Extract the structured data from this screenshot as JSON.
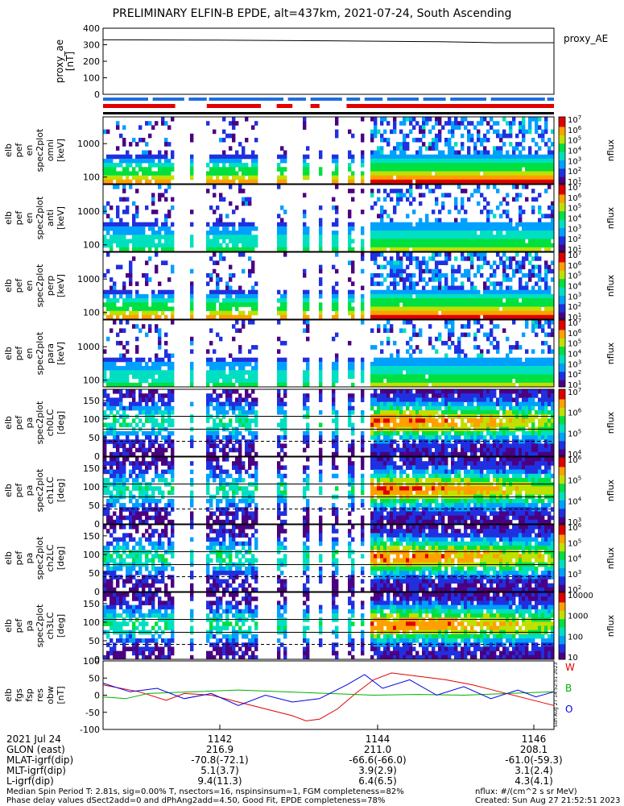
{
  "title": "PRELIMINARY ELFIN-B EPDE, alt=437km, 2021-07-24, South Ascending",
  "chart_data": [
    {
      "type": "line",
      "panel": "proxy_ae",
      "ylabel": [
        "proxy_ae",
        "[nT]"
      ],
      "legend": "proxy_AE",
      "ylim": [
        0,
        400
      ],
      "yticks": [
        0,
        100,
        200,
        300,
        400
      ],
      "x": [
        0,
        0.25,
        0.5,
        0.75,
        0.87,
        1.0
      ],
      "values": [
        330,
        328,
        324,
        318,
        312,
        312
      ]
    },
    {
      "type": "heatmap",
      "panel": "en spectrum 1",
      "ylabel": [
        "elb",
        "pef",
        "en",
        "spec2plot",
        "omni",
        "[keV]"
      ],
      "yscale": "log",
      "yticks": [
        100,
        1000
      ],
      "colorbar": {
        "label": "nflux",
        "ticks": [
          "10^1",
          "10^2",
          "10^3",
          "10^4",
          "10^5",
          "10^6",
          "10^7"
        ]
      }
    },
    {
      "type": "heatmap",
      "panel": "en spectrum 2",
      "ylabel": [
        "elb",
        "pef",
        "en",
        "spec2plot",
        "anti",
        "[keV]"
      ],
      "yscale": "log",
      "yticks": [
        100,
        1000
      ],
      "colorbar": {
        "label": "nflux",
        "ticks": [
          "10^1",
          "10^2",
          "10^3",
          "10^4",
          "10^5",
          "10^6",
          "10^7"
        ]
      }
    },
    {
      "type": "heatmap",
      "panel": "en spectrum 3",
      "ylabel": [
        "elb",
        "pef",
        "en",
        "spec2plot",
        "perp",
        "[keV]"
      ],
      "yscale": "log",
      "yticks": [
        100,
        1000
      ],
      "colorbar": {
        "label": "nflux",
        "ticks": [
          "10^1",
          "10^2",
          "10^3",
          "10^4",
          "10^5",
          "10^6",
          "10^7"
        ]
      }
    },
    {
      "type": "heatmap",
      "panel": "en spectrum 4",
      "ylabel": [
        "elb",
        "pef",
        "en",
        "spec2plot",
        "para",
        "[keV]"
      ],
      "yscale": "log",
      "yticks": [
        100,
        1000
      ],
      "colorbar": {
        "label": "nflux",
        "ticks": [
          "10^1",
          "10^2",
          "10^3",
          "10^4",
          "10^5",
          "10^6",
          "10^7"
        ]
      }
    },
    {
      "type": "heatmap",
      "panel": "pa ch0",
      "ylabel": [
        "elb",
        "pef",
        "pa",
        "spec2plot",
        "ch0LC",
        "[deg]"
      ],
      "yticks": [
        0,
        50,
        100,
        150
      ],
      "ylim": [
        0,
        180
      ],
      "colorbar": {
        "label": "nflux",
        "ticks": [
          "10^4",
          "10^5",
          "10^6",
          "10^7"
        ]
      }
    },
    {
      "type": "heatmap",
      "panel": "pa ch1",
      "ylabel": [
        "elb",
        "pef",
        "pa",
        "spec2plot",
        "ch1LC",
        "[deg]"
      ],
      "yticks": [
        0,
        50,
        100,
        150
      ],
      "ylim": [
        0,
        180
      ],
      "colorbar": {
        "label": "nflux",
        "ticks": [
          "10^3",
          "10^4",
          "10^5",
          "10^6"
        ]
      }
    },
    {
      "type": "heatmap",
      "panel": "pa ch2",
      "ylabel": [
        "elb",
        "pef",
        "pa",
        "spec2plot",
        "ch2LC",
        "[deg]"
      ],
      "yticks": [
        0,
        50,
        100,
        150
      ],
      "ylim": [
        0,
        180
      ],
      "colorbar": {
        "label": "nflux",
        "ticks": [
          "10^2",
          "10^3",
          "10^4",
          "10^5",
          "10^6"
        ]
      }
    },
    {
      "type": "heatmap",
      "panel": "pa ch3",
      "ylabel": [
        "elb",
        "pef",
        "pa",
        "spec2plot",
        "ch3LC",
        "[deg]"
      ],
      "yticks": [
        0,
        50,
        100,
        150
      ],
      "ylim": [
        0,
        180
      ],
      "colorbar": {
        "label": "nflux",
        "ticks": [
          "10",
          "100",
          "1000",
          "10000"
        ]
      }
    },
    {
      "type": "line",
      "panel": "fgs",
      "ylabel": [
        "elb",
        "fgs",
        "fsp",
        "res",
        "obw",
        "[nT]"
      ],
      "ylim": [
        -100,
        100
      ],
      "yticks": [
        -100,
        -50,
        0,
        50,
        100
      ],
      "legend": [
        "W",
        "B",
        "O"
      ],
      "series": [
        {
          "name": "W",
          "color": "#e00000",
          "x": [
            0.0,
            0.08,
            0.14,
            0.18,
            0.24,
            0.3,
            0.36,
            0.42,
            0.45,
            0.48,
            0.52,
            0.56,
            0.6,
            0.64,
            0.7,
            0.76,
            0.82,
            0.88,
            0.94,
            1.0
          ],
          "values": [
            30,
            10,
            -15,
            5,
            0,
            -20,
            -40,
            -60,
            -75,
            -70,
            -40,
            5,
            45,
            65,
            55,
            45,
            30,
            10,
            -10,
            -30
          ]
        },
        {
          "name": "B",
          "color": "#00b000",
          "x": [
            0.0,
            0.05,
            0.1,
            0.2,
            0.3,
            0.4,
            0.5,
            0.6,
            0.7,
            0.8,
            0.9,
            1.0
          ],
          "values": [
            -5,
            -10,
            5,
            10,
            15,
            10,
            5,
            0,
            2,
            0,
            5,
            10
          ]
        },
        {
          "name": "O",
          "color": "#0000e0",
          "x": [
            0.0,
            0.06,
            0.12,
            0.18,
            0.24,
            0.3,
            0.36,
            0.42,
            0.48,
            0.54,
            0.58,
            0.62,
            0.68,
            0.74,
            0.8,
            0.86,
            0.92,
            0.96,
            1.0
          ],
          "values": [
            35,
            10,
            20,
            -10,
            5,
            -30,
            0,
            -20,
            -10,
            30,
            60,
            20,
            45,
            0,
            25,
            -10,
            15,
            -5,
            10
          ]
        }
      ]
    }
  ],
  "xaxis": {
    "rows": [
      {
        "label": "2021 Jul 24",
        "values": [
          "1142",
          "1144",
          "1146"
        ]
      },
      {
        "label": "GLON (east)",
        "values": [
          "216.9",
          "211.0",
          "208.1"
        ]
      },
      {
        "label": "MLAT-igrf(dip)",
        "values": [
          "-70.8(-72.1)",
          "-66.6(-66.0)",
          "-61.0(-59.3)"
        ]
      },
      {
        "label": "MLT-igrf(dip)",
        "values": [
          "5.1(3.7)",
          "3.9(2.9)",
          "3.1(2.4)"
        ]
      },
      {
        "label": "L-igrf(dip)",
        "values": [
          "9.4(11.3)",
          "6.4(6.5)",
          "4.3(4.1)"
        ]
      }
    ]
  },
  "footer": {
    "left1": "Median Spin Period T: 2.81s, sig=0.00% T, nsectors=16, nspinsinsum=1, FGM completeness=82%",
    "left2": "Phase delay values dSect2add=0 and dPhAng2add=4.50, Good Fit, EPDE completeness=78%",
    "right1": "nflux: #/(cm^2 s sr MeV)",
    "right2": "Created: Sun Aug 27 21:52:51 2023",
    "vertical": "Sun Aug 27 14:52:51 2023"
  },
  "colors": {
    "red": "#e00000",
    "blue": "#1f6fe0",
    "green": "#00b000",
    "black": "#000000"
  }
}
